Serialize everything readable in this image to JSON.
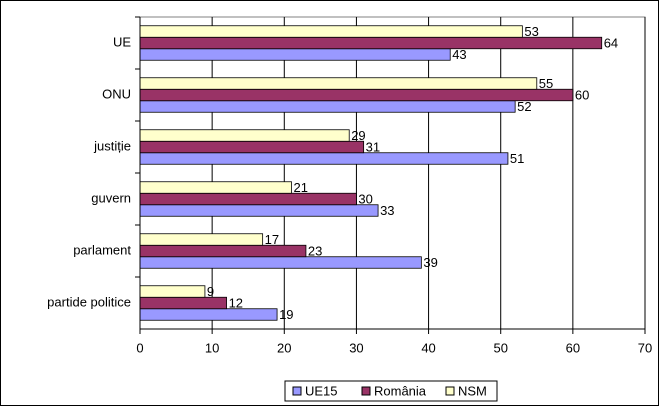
{
  "chart_data": {
    "type": "hbar",
    "categories": [
      "UE",
      "ONU",
      "justiție",
      "guvern",
      "parlament",
      "partide politice"
    ],
    "series": [
      {
        "name": "UE15",
        "color": "#9999ff",
        "values": [
          43,
          52,
          51,
          33,
          39,
          19
        ]
      },
      {
        "name": "România",
        "color": "#993366",
        "values": [
          64,
          60,
          31,
          30,
          23,
          12
        ]
      },
      {
        "name": "NSM",
        "color": "#ffffcc",
        "values": [
          53,
          55,
          29,
          21,
          17,
          9
        ]
      }
    ],
    "xlim": [
      0,
      70
    ],
    "xticks": [
      0,
      10,
      20,
      30,
      40,
      50,
      60,
      70
    ],
    "grid": true,
    "legend": "bottom"
  }
}
